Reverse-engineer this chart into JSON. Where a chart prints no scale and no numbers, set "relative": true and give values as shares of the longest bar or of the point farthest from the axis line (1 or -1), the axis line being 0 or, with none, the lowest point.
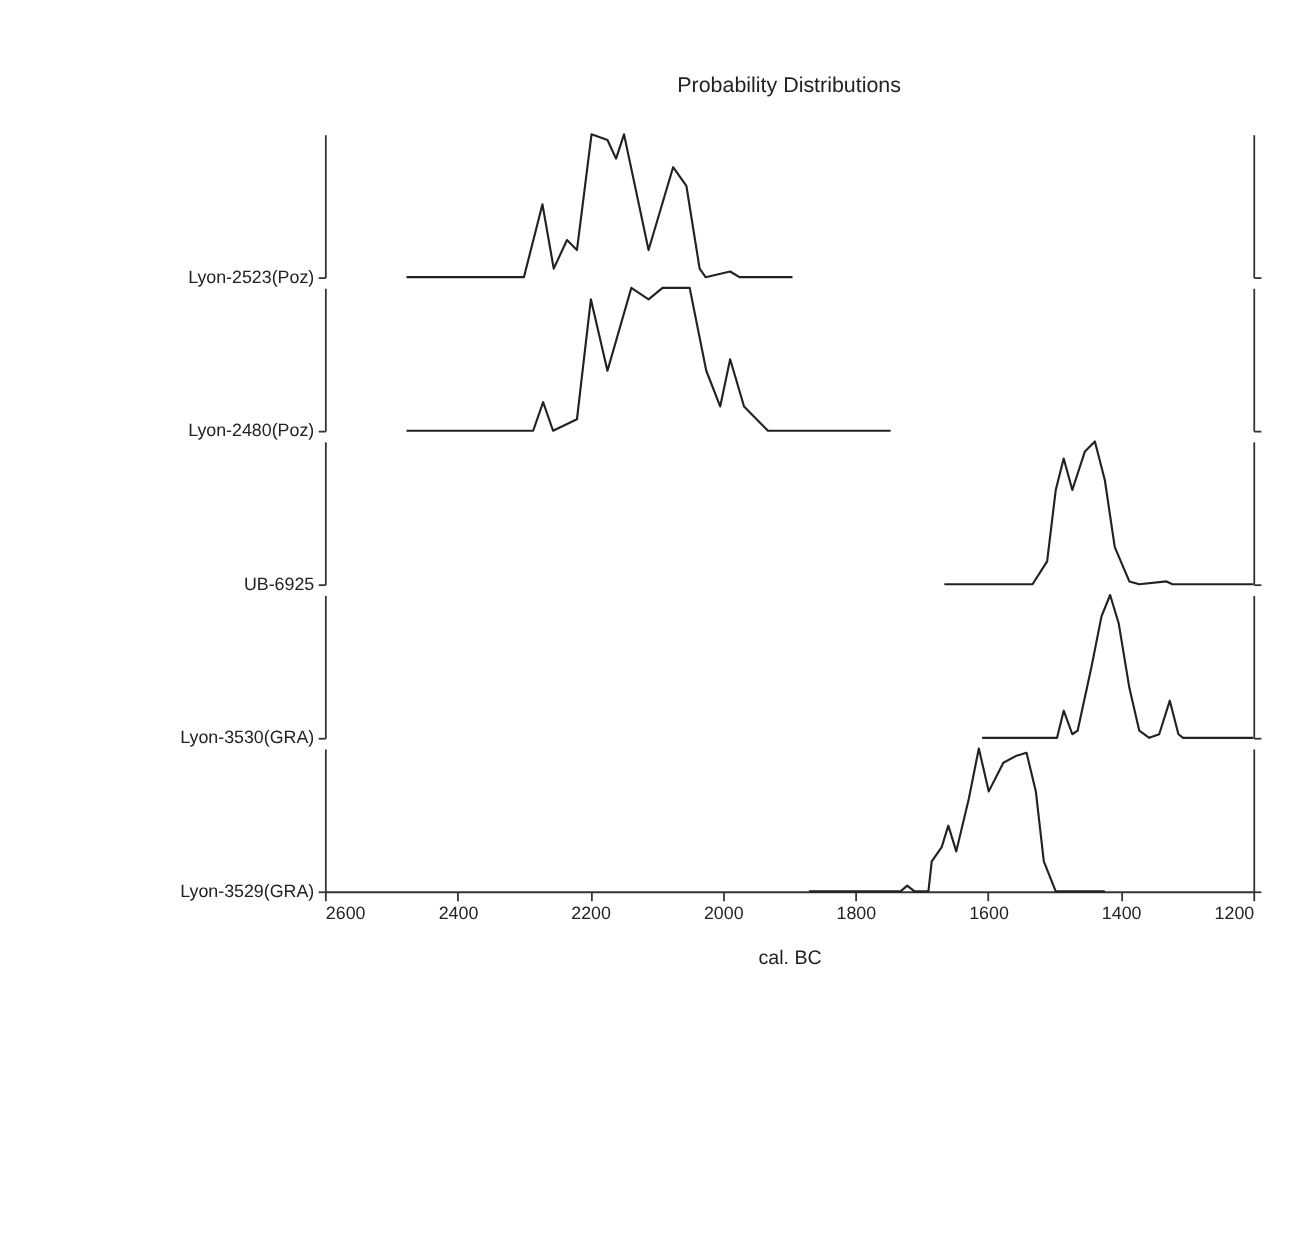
{
  "chart_data": [
    {
      "type": "line",
      "title": "Probability Distributions",
      "ylabel": "Lyon-2523(Poz)",
      "relative": true,
      "xlim": [
        2600,
        1200
      ],
      "tick_labels": false,
      "x": [
        2477,
        2300,
        2272,
        2255,
        2235,
        2220,
        2198,
        2174,
        2161,
        2149,
        2112,
        2075,
        2055,
        2035,
        2026,
        1989,
        1975,
        1895
      ],
      "values": [
        0,
        0,
        0.51,
        0.06,
        0.26,
        0.19,
        1,
        0.96,
        0.83,
        1,
        0.19,
        0.77,
        0.64,
        0.06,
        0,
        0.04,
        0,
        0
      ]
    },
    {
      "type": "line",
      "ylabel": "Lyon-2480(Poz)",
      "relative": true,
      "xlim": [
        2600,
        1200
      ],
      "tick_labels": false,
      "x": [
        2477,
        2286,
        2271,
        2256,
        2220,
        2199,
        2174,
        2138,
        2112,
        2091,
        2050,
        2025,
        2004,
        1989,
        1968,
        1932,
        1747
      ],
      "values": [
        0,
        0,
        0.2,
        0,
        0.08,
        0.92,
        0.42,
        1,
        0.92,
        1,
        1,
        0.42,
        0.17,
        0.5,
        0.17,
        0,
        0
      ]
    },
    {
      "type": "line",
      "ylabel": "UB-6925",
      "relative": true,
      "xlim": [
        2600,
        1200
      ],
      "tick_labels": false,
      "x": [
        1666,
        1533,
        1511,
        1498,
        1486,
        1473,
        1454,
        1439,
        1424,
        1409,
        1387,
        1372,
        1331,
        1322,
        1200
      ],
      "values": [
        0,
        0,
        0.16,
        0.66,
        0.88,
        0.66,
        0.93,
        1,
        0.73,
        0.26,
        0.02,
        0,
        0.02,
        0,
        0
      ]
    },
    {
      "type": "line",
      "ylabel": "Lyon-3530(GRA)",
      "relative": true,
      "xlim": [
        2600,
        1200
      ],
      "tick_labels": false,
      "x": [
        1609,
        1496,
        1486,
        1473,
        1465,
        1444,
        1429,
        1416,
        1403,
        1387,
        1372,
        1357,
        1342,
        1326,
        1313,
        1306,
        1200
      ],
      "values": [
        0,
        0,
        0.19,
        0.025,
        0.05,
        0.5,
        0.85,
        1,
        0.8,
        0.35,
        0.05,
        0,
        0.025,
        0.26,
        0.025,
        0,
        0
      ]
    },
    {
      "type": "line",
      "ylabel": "Lyon-3529(GRA)",
      "xlabel": "cal. BC",
      "relative": true,
      "xlim": [
        2600,
        1200
      ],
      "xticks": [
        2600,
        2400,
        2200,
        2000,
        1800,
        1600,
        1400,
        1200
      ],
      "tick_labels": "x",
      "x": [
        1870,
        1732,
        1722,
        1711,
        1690,
        1685,
        1670,
        1660,
        1648,
        1629,
        1614,
        1599,
        1577,
        1557,
        1542,
        1528,
        1516,
        1498,
        1424
      ],
      "values": [
        0,
        0,
        0.04,
        0,
        0,
        0.21,
        0.31,
        0.46,
        0.28,
        0.65,
        1,
        0.7,
        0.9,
        0.95,
        0.97,
        0.7,
        0.21,
        0,
        0
      ]
    }
  ]
}
